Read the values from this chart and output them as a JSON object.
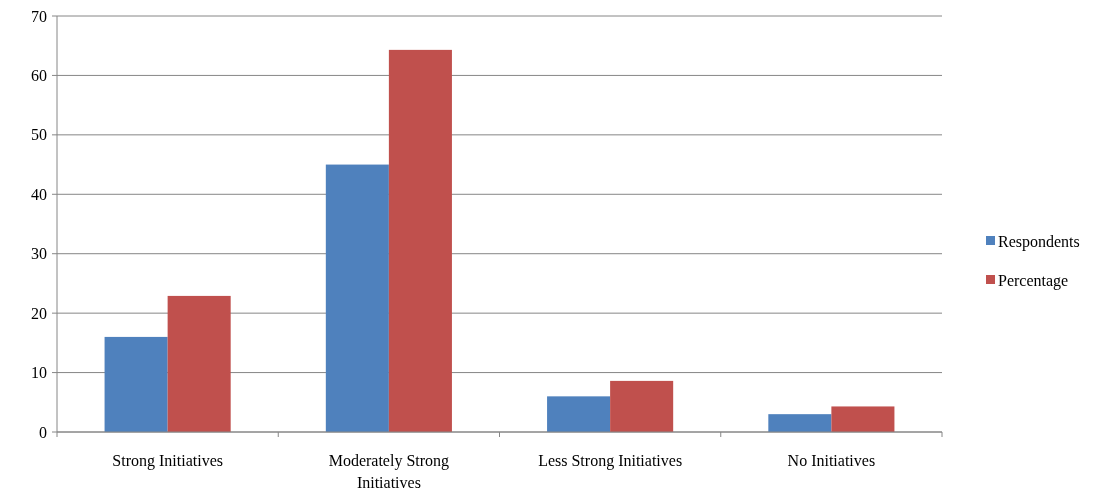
{
  "chart_data": {
    "type": "bar",
    "categories": [
      "Strong Initiatives",
      "Moderately Strong Initiatives",
      "Less Strong Initiatives",
      "No Initiatives"
    ],
    "series": [
      {
        "name": "Respondents",
        "color": "#4f81bd",
        "values": [
          16,
          45,
          6,
          3
        ]
      },
      {
        "name": "Percentage",
        "color": "#c0504d",
        "values": [
          22.9,
          64.3,
          8.6,
          4.3
        ]
      }
    ],
    "ylim": [
      0,
      70
    ],
    "yticks": [
      0,
      10,
      20,
      30,
      40,
      50,
      60,
      70
    ],
    "grid": "y",
    "legend": "right"
  }
}
